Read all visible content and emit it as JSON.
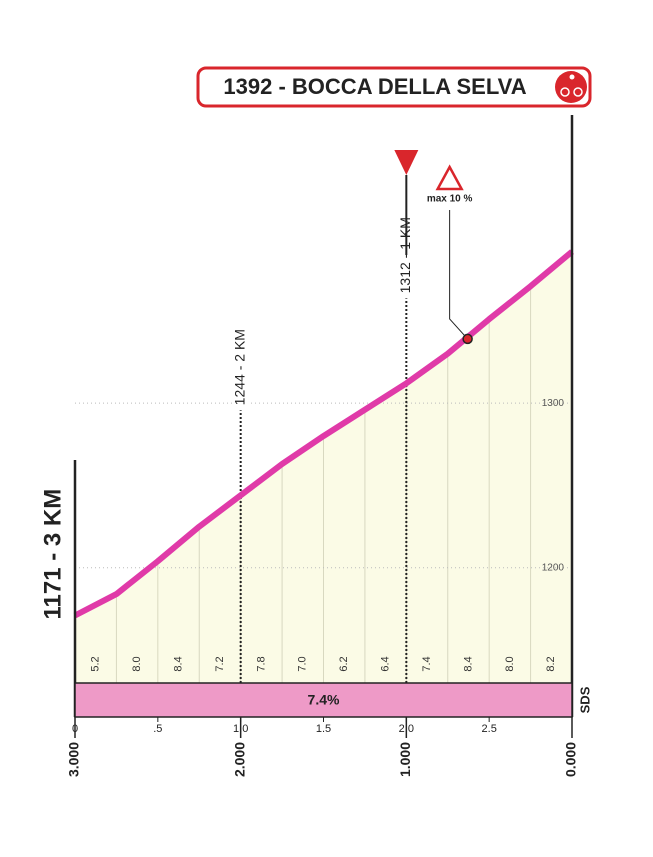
{
  "chart_data": {
    "type": "area",
    "title": "1392 - BOCCA DELLA SELVA",
    "start_label": "1171 - 3 KM",
    "x": [
      0,
      0.25,
      0.5,
      0.75,
      1,
      1.25,
      1.5,
      1.75,
      2,
      2.25,
      2.5,
      2.75,
      3
    ],
    "values": [
      1171,
      1184,
      1204,
      1225,
      1244,
      1263,
      1280,
      1296,
      1312,
      1330,
      1351,
      1371,
      1392
    ],
    "segment_gradients": [
      "5.2",
      "8.0",
      "8.4",
      "7.2",
      "7.8",
      "7.0",
      "6.2",
      "6.4",
      "7.4",
      "8.4",
      "8.0",
      "8.2"
    ],
    "average_gradient": "7.4%",
    "markers": [
      {
        "x": 1,
        "label": "1244 - 2 KM"
      },
      {
        "x": 2,
        "label": "1312 - 1 KM"
      }
    ],
    "annotation": {
      "x": 2.37,
      "y": 1339,
      "label": "max 10 %"
    },
    "side_label": "SDS",
    "color": "#e03aa8",
    "fill": "#fbfbe6",
    "xlim": [
      0,
      3
    ],
    "ylim": [
      1130,
      1475
    ],
    "yticks": [
      1200,
      1300
    ],
    "xticks": [
      0,
      {
        "value": 0.5,
        "label": ".5"
      },
      {
        "value": 1,
        "label": "1.0"
      },
      1.5,
      {
        "value": 2,
        "label": "2.0"
      },
      2.5
    ],
    "distance_labels": [
      {
        "value": 0,
        "label": "3.000"
      },
      {
        "value": 1,
        "label": "2.000"
      },
      {
        "value": 2,
        "label": "1.000"
      },
      {
        "value": 3,
        "label": "0.000"
      }
    ]
  }
}
